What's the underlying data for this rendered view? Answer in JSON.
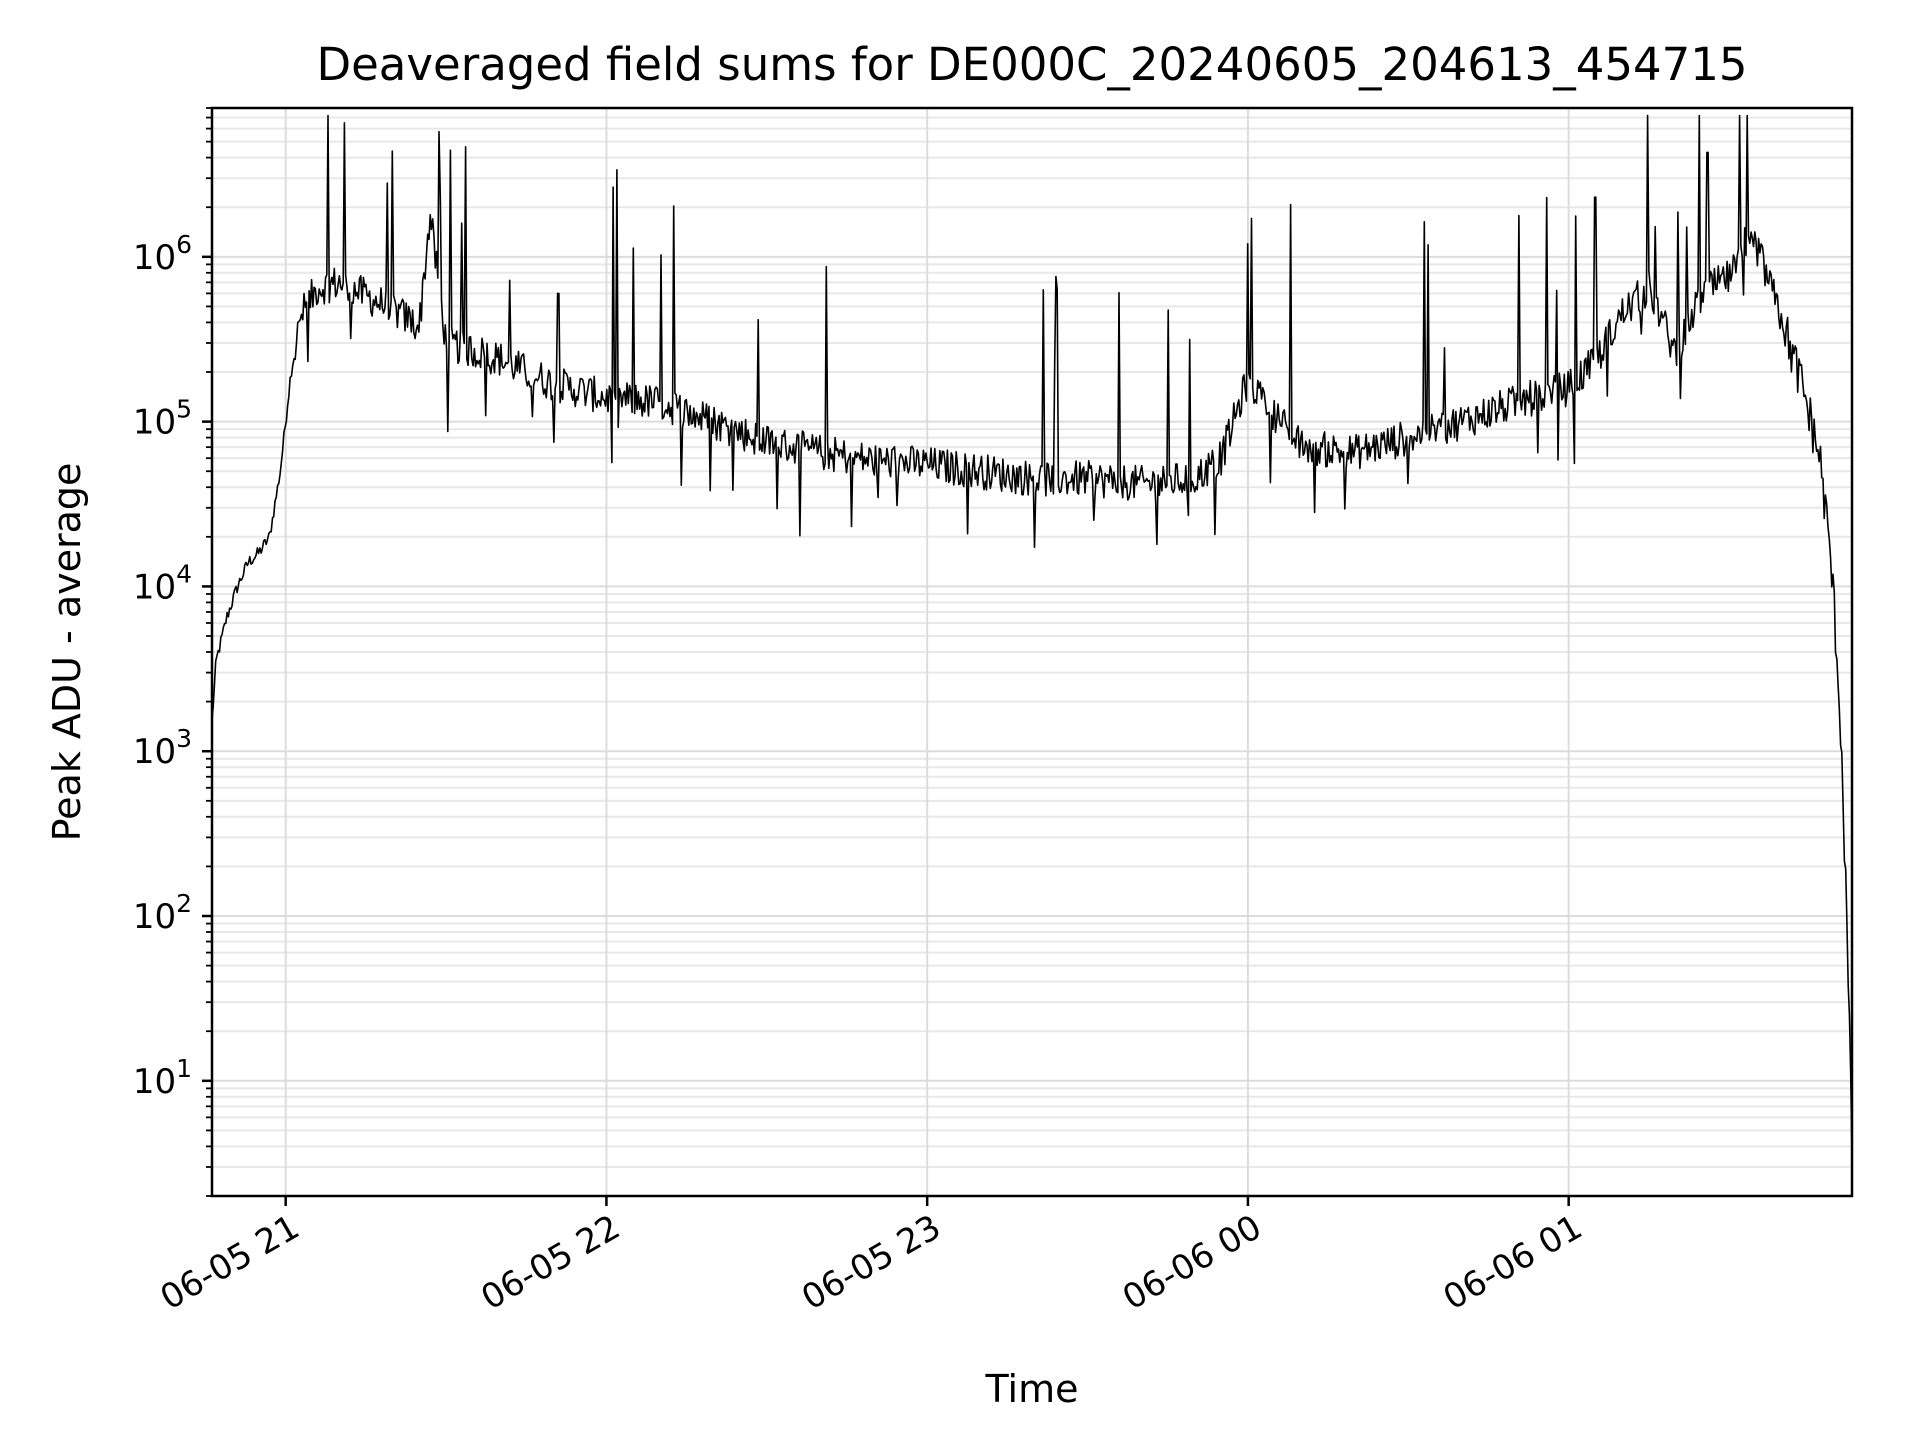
{
  "chart_data": {
    "type": "line",
    "title": "Deaveraged field sums for DE000C_20240605_204613_454715",
    "xlabel": "Time",
    "ylabel": "Peak ADU - average",
    "yscale": "log",
    "ylim": [
      2,
      8000000
    ],
    "xlim": [
      "2024-06-05 20:46:13",
      "2024-06-06 01:53:00"
    ],
    "grid": true,
    "line_color": "#000000",
    "x_ticks": [
      {
        "value": "2024-06-05 21:00",
        "label": "06-05 21"
      },
      {
        "value": "2024-06-05 22:00",
        "label": "06-05 22"
      },
      {
        "value": "2024-06-05 23:00",
        "label": "06-05 23"
      },
      {
        "value": "2024-06-06 00:00",
        "label": "06-06 00"
      },
      {
        "value": "2024-06-06 01:00",
        "label": "06-06 01"
      }
    ],
    "y_ticks": [
      {
        "value": 10,
        "base": "10",
        "exp": "1"
      },
      {
        "value": 100,
        "base": "10",
        "exp": "2"
      },
      {
        "value": 1000,
        "base": "10",
        "exp": "3"
      },
      {
        "value": 10000,
        "base": "10",
        "exp": "4"
      },
      {
        "value": 100000,
        "base": "10",
        "exp": "5"
      },
      {
        "value": 1000000,
        "base": "10",
        "exp": "6"
      }
    ],
    "series": [
      {
        "x": [
          "2024-06-05 20:46:13",
          "2024-06-05 20:47:00",
          "2024-06-05 20:49:00",
          "2024-06-05 20:51:00",
          "2024-06-05 20:53:00",
          "2024-06-05 20:55:00",
          "2024-06-05 20:57:00",
          "2024-06-05 20:59:00",
          "2024-06-05 21:01:00",
          "2024-06-05 21:03:00",
          "2024-06-05 21:06:00",
          "2024-06-05 21:10:00",
          "2024-06-05 21:15:00",
          "2024-06-05 21:20:00",
          "2024-06-05 21:25:00",
          "2024-06-05 21:27:00",
          "2024-06-05 21:30:00",
          "2024-06-05 21:35:00",
          "2024-06-05 21:40:00",
          "2024-06-05 21:45:00",
          "2024-06-05 21:50:00",
          "2024-06-05 22:00:00",
          "2024-06-05 22:10:00",
          "2024-06-05 22:20:00",
          "2024-06-05 22:30:00",
          "2024-06-05 22:40:00",
          "2024-06-05 22:50:00",
          "2024-06-05 23:00:00",
          "2024-06-05 23:10:00",
          "2024-06-05 23:20:00",
          "2024-06-05 23:30:00",
          "2024-06-05 23:40:00",
          "2024-06-05 23:50:00",
          "2024-06-05 23:55:00",
          "2024-06-06 00:00:00",
          "2024-06-06 00:10:00",
          "2024-06-06 00:20:00",
          "2024-06-06 00:30:00",
          "2024-06-06 00:40:00",
          "2024-06-06 00:50:00",
          "2024-06-06 01:00:00",
          "2024-06-06 01:05:00",
          "2024-06-06 01:10:00",
          "2024-06-06 01:15:00",
          "2024-06-06 01:20:00",
          "2024-06-06 01:25:00",
          "2024-06-06 01:30:00",
          "2024-06-06 01:35:00",
          "2024-06-06 01:40:00",
          "2024-06-06 01:44:00",
          "2024-06-06 01:47:00",
          "2024-06-06 01:49:00",
          "2024-06-06 01:50:00",
          "2024-06-06 01:51:00",
          "2024-06-06 01:52:00",
          "2024-06-06 01:53:00"
        ],
        "values": [
          1500,
          3500,
          6500,
          10000,
          14000,
          16000,
          20000,
          50000,
          200000,
          450000,
          650000,
          700000,
          580000,
          480000,
          380000,
          1800000,
          300000,
          270000,
          240000,
          200000,
          170000,
          140000,
          130000,
          100000,
          75000,
          65000,
          58000,
          55000,
          50000,
          45000,
          45000,
          42000,
          45000,
          60000,
          180000,
          70000,
          65000,
          80000,
          100000,
          130000,
          160000,
          230000,
          450000,
          650000,
          260000,
          600000,
          750000,
          1200000,
          400000,
          150000,
          60000,
          15000,
          5000,
          1200,
          100,
          4
        ],
        "spikes": [
          {
            "x": "2024-06-05 21:29:00",
            "value": 2300000
          },
          {
            "x": "2024-06-05 21:33:00",
            "value": 1600000
          },
          {
            "x": "2024-06-05 21:42:00",
            "value": 720000
          },
          {
            "x": "2024-06-05 21:51:00",
            "value": 600000
          },
          {
            "x": "2024-06-06 00:00:00",
            "value": 1200000
          },
          {
            "x": "2024-06-06 01:05:00",
            "value": 2300000
          },
          {
            "x": "2024-06-06 01:26:00",
            "value": 4300000
          },
          {
            "x": "2024-06-06 01:33:00",
            "value": 1500000
          }
        ]
      }
    ]
  }
}
